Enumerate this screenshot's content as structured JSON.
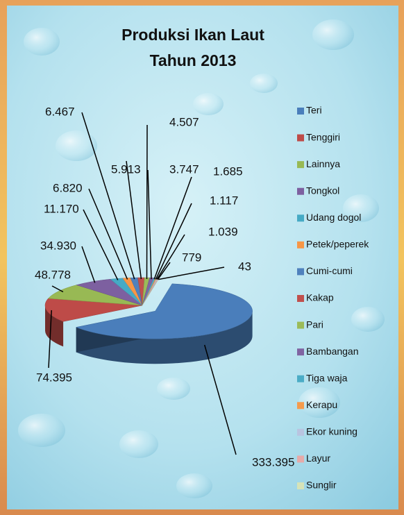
{
  "chart_data": {
    "type": "pie3d",
    "title": [
      "Produksi Ikan Laut",
      "Tahun 2013"
    ],
    "categories": [
      "Teri",
      "Tenggiri",
      "Lainnya",
      "Tongkol",
      "Udang dogol",
      "Petek/peperek",
      "Cumi-cumi",
      "Kakap",
      "Pari",
      "Bambangan",
      "Tiga waja",
      "Kerapu",
      "Ekor kuning",
      "Layur",
      "Sunglir"
    ],
    "values": [
      333395,
      74395,
      48778,
      34930,
      11170,
      6820,
      6467,
      5913,
      4507,
      3747,
      1685,
      1117,
      1039,
      779,
      43
    ],
    "value_labels": [
      "333.395",
      "74.395",
      "48.778",
      "34.930",
      "11.170",
      "6.820",
      "6.467",
      "5.913",
      "4.507",
      "3.747",
      "1.685",
      "1.117",
      "1.039",
      "779",
      "43"
    ],
    "colors": [
      "#4a7ebb",
      "#be4b48",
      "#98b954",
      "#7d60a0",
      "#46aac5",
      "#f79646",
      "#4f81bd",
      "#c0504d",
      "#9bbb59",
      "#8064a2",
      "#4bacc6",
      "#f59a4c",
      "#b9c4e0",
      "#e6aaa9",
      "#d6e3b8"
    ],
    "legend": "right"
  }
}
